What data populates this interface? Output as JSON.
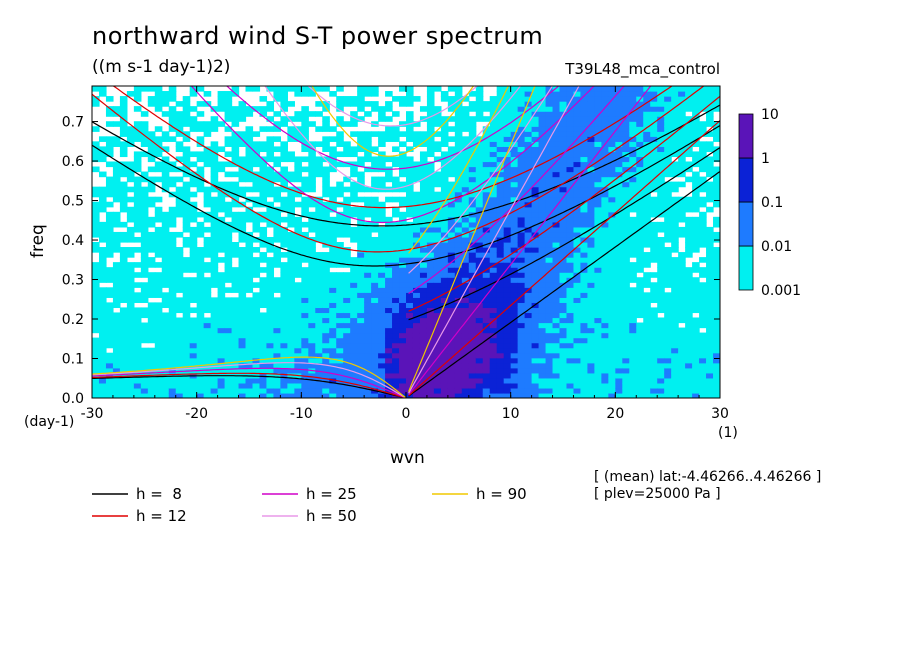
{
  "header": {
    "title": "northward wind S-T power spectrum",
    "units": "((m s-1 day-1)2)",
    "run_name": "T39L48_mca_control"
  },
  "meta": {
    "line1": "[ (mean) lat:-4.46266..4.46266 ]",
    "line2": "[ plev=25000 Pa ]"
  },
  "chart_data": {
    "type": "heatmap",
    "title": "northward wind S-T power spectrum",
    "subtitle": "((m s-1 day-1)2)",
    "xlabel": "wvn",
    "ylabel": "freq",
    "x_unit": "(1)",
    "y_unit": "(day-1)",
    "xlim": [
      -30,
      30
    ],
    "ylim": [
      0,
      0.79
    ],
    "xticks": [
      -30,
      -20,
      -10,
      0,
      10,
      20,
      30
    ],
    "xtick_labels": [
      "-30",
      "-20",
      "-10",
      "0",
      "10",
      "20",
      "30"
    ],
    "yticks": [
      0,
      0.1,
      0.2,
      0.3,
      0.4,
      0.5,
      0.6,
      0.7
    ],
    "ytick_labels": [
      "0.0",
      "0.1",
      "0.2",
      "0.3",
      "0.4",
      "0.5",
      "0.6",
      "0.7"
    ],
    "colorbar": {
      "levels": [
        0.001,
        0.01,
        0.1,
        1,
        10
      ],
      "labels": [
        "0.001",
        "0.01",
        "0.1",
        "1",
        "10"
      ],
      "colors": [
        "#00f0f0",
        "#1e7bff",
        "#0b22d6",
        "#5a14b8"
      ],
      "scale": "log"
    },
    "power_regions": [
      {
        "level": "0.001-0.01",
        "description": "broad background coverage across most of domain"
      },
      {
        "level": "0.01-0.1",
        "x_range": [
          -8,
          20
        ],
        "y_range": [
          0,
          0.6
        ]
      },
      {
        "level": "0.1-1",
        "x_range": [
          0,
          12
        ],
        "y_range": [
          0,
          0.35
        ]
      },
      {
        "level": "1-10",
        "x_range": [
          3,
          8
        ],
        "y_range": [
          0.02,
          0.12
        ]
      }
    ],
    "dispersion_curves": [
      {
        "name": "h =  8",
        "h": 8,
        "color": "#000000"
      },
      {
        "name": "h = 12",
        "h": 12,
        "color": "#e00000"
      },
      {
        "name": "h = 25",
        "h": 25,
        "color": "#d000c8"
      },
      {
        "name": "h = 50",
        "h": 50,
        "color": "#e898e8"
      },
      {
        "name": "h = 90",
        "h": 90,
        "color": "#f0c800"
      }
    ],
    "legend": [
      "h =  8",
      "h = 12",
      "h = 25",
      "h = 50",
      "h = 90"
    ],
    "legend_placement": "bottom",
    "grid": false
  }
}
